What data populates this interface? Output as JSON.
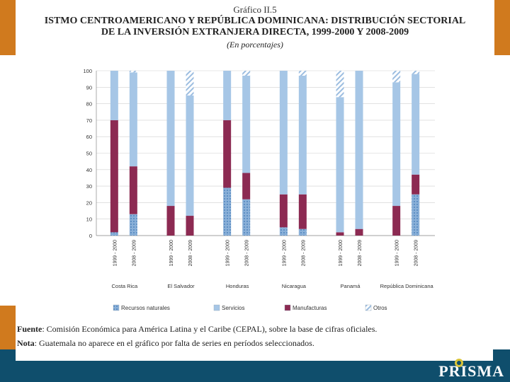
{
  "header": {
    "figure_label": "Gráfico II.5",
    "title_line1": "ISTMO CENTROAMERICANO Y REPÚBLICA DOMINICANA: DISTRIBUCIÓN SECTORIAL",
    "title_line2": "DE LA INVERSIÓN EXTRANJERA DIRECTA, 1999-2000 Y 2008-2009",
    "subtitle": "(En porcentajes)"
  },
  "notes": {
    "source_label": "Fuente",
    "source_text": ": Comisión Económica para América Latina y el Caribe (CEPAL), sobre la base de cifras oficiales.",
    "note_label": "Nota",
    "note_text": ": Guatemala no aparece en el gráfico por falta de series en períodos seleccionados."
  },
  "brand": {
    "name": "PRISMA"
  },
  "colors": {
    "recursos": "#8ab0d8",
    "servicios": "#a6c6e6",
    "manufacturas": "#8c2a52",
    "otros": "#b9d3ec",
    "accent_orange": "#d07a1e",
    "footer_blue": "#0f4e6c"
  },
  "chart_data": {
    "type": "bar",
    "stacked": true,
    "ylim": [
      0,
      100
    ],
    "yticks": [
      0,
      10,
      20,
      30,
      40,
      50,
      60,
      70,
      80,
      90,
      100
    ],
    "title": "",
    "xlabel": "",
    "ylabel": "",
    "legend": [
      "Recursos naturales",
      "Servicios",
      "Manufacturas",
      "Otros"
    ],
    "groups": [
      {
        "country": "Costa Rica",
        "bars": [
          {
            "period": "1999 - 2000",
            "recursos": 2,
            "manufacturas": 68,
            "servicios": 30,
            "otros": 0
          },
          {
            "period": "2008 - 2009",
            "recursos": 13,
            "manufacturas": 29,
            "servicios": 57,
            "otros": 1
          }
        ]
      },
      {
        "country": "El Salvador",
        "bars": [
          {
            "period": "1999 - 2000",
            "recursos": 0,
            "manufacturas": 18,
            "servicios": 82,
            "otros": 0
          },
          {
            "period": "2008 - 2009",
            "recursos": 0,
            "manufacturas": 12,
            "servicios": 73,
            "otros": 15
          }
        ]
      },
      {
        "country": "Honduras",
        "bars": [
          {
            "period": "1999 - 2000",
            "recursos": 29,
            "manufacturas": 41,
            "servicios": 30,
            "otros": 0
          },
          {
            "period": "2008 - 2009",
            "recursos": 22,
            "manufacturas": 16,
            "servicios": 59,
            "otros": 3
          }
        ]
      },
      {
        "country": "Nicaragua",
        "bars": [
          {
            "period": "1999 - 2000",
            "recursos": 5,
            "manufacturas": 20,
            "servicios": 75,
            "otros": 0
          },
          {
            "period": "2008 - 2009",
            "recursos": 4,
            "manufacturas": 21,
            "servicios": 72,
            "otros": 3
          }
        ]
      },
      {
        "country": "Panamá",
        "bars": [
          {
            "period": "1999 - 2000",
            "recursos": 0,
            "manufacturas": 2,
            "servicios": 82,
            "otros": 16
          },
          {
            "period": "2008 - 2009",
            "recursos": 0,
            "manufacturas": 4,
            "servicios": 96,
            "otros": 0
          }
        ]
      },
      {
        "country": "República Dominicana",
        "bars": [
          {
            "period": "1999 - 2000",
            "recursos": 0,
            "manufacturas": 18,
            "servicios": 75,
            "otros": 7
          },
          {
            "period": "2008 - 2009",
            "recursos": 25,
            "manufacturas": 12,
            "servicios": 61,
            "otros": 2
          }
        ]
      }
    ]
  }
}
